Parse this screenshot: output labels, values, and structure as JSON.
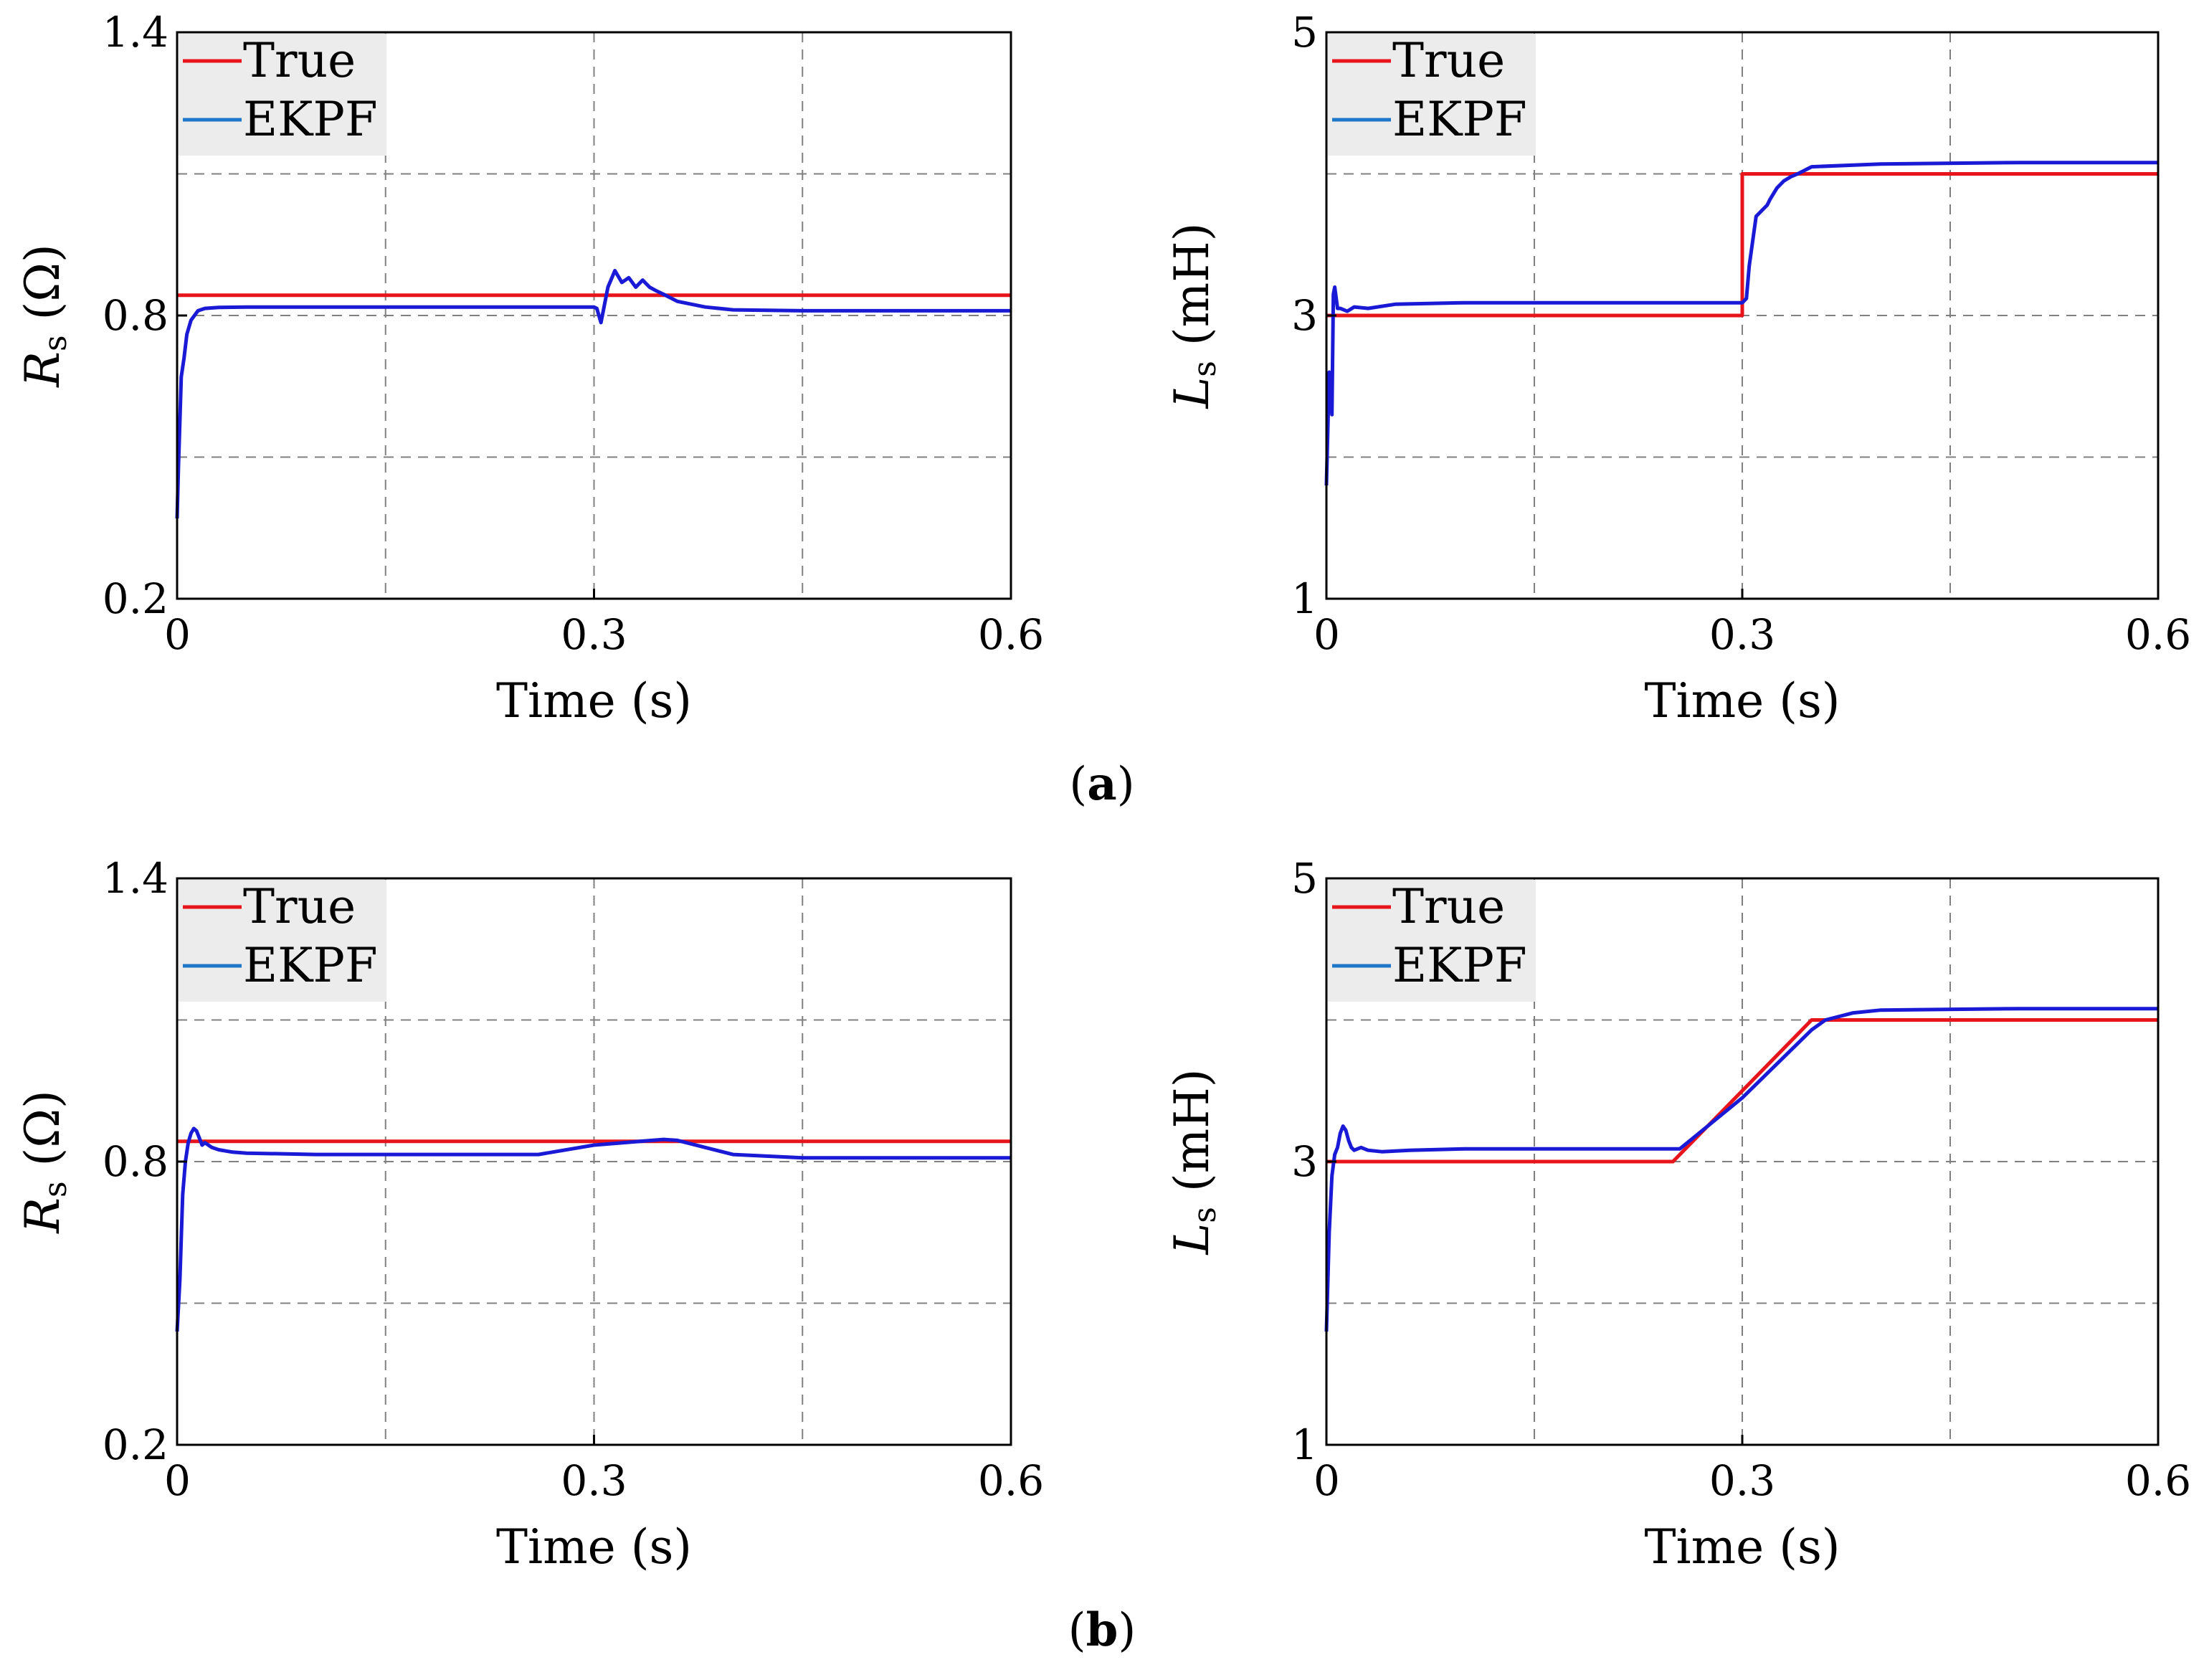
{
  "captions": [
    "(a)",
    "(b)"
  ],
  "colors": {
    "true": "#e8141b",
    "ekpf": "#1a1ad6",
    "legend_ekpf": "#1f77c9",
    "grid": "#808080",
    "legend_bg": "#ececec"
  },
  "chart_data": [
    {
      "type": "line",
      "panel": "a-left",
      "xlabel": "Time (s)",
      "ylabel_main": "R",
      "ylabel_sub": "s",
      "ylabel_unit": "(Ω)",
      "xlim": [
        0,
        0.6
      ],
      "ylim": [
        0.2,
        1.4
      ],
      "xticks": [
        0,
        0.3,
        0.6
      ],
      "xtick_labels": [
        "0",
        "0.3",
        "0.6"
      ],
      "yticks": [
        0.2,
        0.8,
        1.4
      ],
      "ytick_labels": [
        "0.2",
        "0.8",
        "1.4"
      ],
      "xgrid": [
        0.15,
        0.3,
        0.45
      ],
      "ygrid": [
        0.5,
        0.8,
        1.1
      ],
      "legend": [
        "True",
        "EKPF"
      ],
      "series": [
        {
          "name": "True",
          "x": [
            0,
            0.6
          ],
          "y": [
            0.843,
            0.843
          ]
        },
        {
          "name": "EKPF",
          "x": [
            0,
            0.001,
            0.003,
            0.005,
            0.007,
            0.01,
            0.015,
            0.02,
            0.03,
            0.05,
            0.1,
            0.2,
            0.3,
            0.302,
            0.305,
            0.31,
            0.315,
            0.32,
            0.325,
            0.33,
            0.335,
            0.34,
            0.345,
            0.35,
            0.36,
            0.38,
            0.4,
            0.45,
            0.5,
            0.6
          ],
          "y": [
            0.37,
            0.48,
            0.67,
            0.71,
            0.76,
            0.79,
            0.81,
            0.815,
            0.817,
            0.818,
            0.818,
            0.818,
            0.818,
            0.815,
            0.785,
            0.86,
            0.895,
            0.87,
            0.88,
            0.86,
            0.875,
            0.86,
            0.852,
            0.845,
            0.83,
            0.818,
            0.812,
            0.81,
            0.81,
            0.81
          ]
        }
      ]
    },
    {
      "type": "line",
      "panel": "a-right",
      "xlabel": "Time (s)",
      "ylabel_main": "L",
      "ylabel_sub": "s",
      "ylabel_unit": "(mH)",
      "xlim": [
        0,
        0.6
      ],
      "ylim": [
        1,
        5
      ],
      "xticks": [
        0,
        0.3,
        0.6
      ],
      "xtick_labels": [
        "0",
        "0.3",
        "0.6"
      ],
      "yticks": [
        1,
        3,
        5
      ],
      "ytick_labels": [
        "1",
        "3",
        "5"
      ],
      "xgrid": [
        0.15,
        0.3,
        0.45
      ],
      "ygrid": [
        2,
        3,
        4
      ],
      "legend": [
        "True",
        "EKPF"
      ],
      "series": [
        {
          "name": "True",
          "x": [
            0,
            0.3,
            0.3,
            0.6
          ],
          "y": [
            3.0,
            3.0,
            4.0,
            4.0
          ]
        },
        {
          "name": "EKPF",
          "x": [
            0,
            0.002,
            0.004,
            0.005,
            0.006,
            0.008,
            0.01,
            0.015,
            0.02,
            0.03,
            0.05,
            0.1,
            0.2,
            0.3,
            0.303,
            0.305,
            0.31,
            0.315,
            0.318,
            0.32,
            0.325,
            0.33,
            0.335,
            0.34,
            0.35,
            0.4,
            0.5,
            0.6
          ],
          "y": [
            1.8,
            2.6,
            2.3,
            3.15,
            3.2,
            3.05,
            3.05,
            3.03,
            3.06,
            3.05,
            3.08,
            3.09,
            3.09,
            3.09,
            3.12,
            3.35,
            3.7,
            3.75,
            3.78,
            3.82,
            3.9,
            3.95,
            3.98,
            4.0,
            4.05,
            4.07,
            4.08,
            4.08
          ]
        }
      ]
    },
    {
      "type": "line",
      "panel": "b-left",
      "xlabel": "Time (s)",
      "ylabel_main": "R",
      "ylabel_sub": "s",
      "ylabel_unit": "(Ω)",
      "xlim": [
        0,
        0.6
      ],
      "ylim": [
        0.2,
        1.4
      ],
      "xticks": [
        0,
        0.3,
        0.6
      ],
      "xtick_labels": [
        "0",
        "0.3",
        "0.6"
      ],
      "yticks": [
        0.2,
        0.8,
        1.4
      ],
      "ytick_labels": [
        "0.2",
        "0.8",
        "1.4"
      ],
      "xgrid": [
        0.15,
        0.3,
        0.45
      ],
      "ygrid": [
        0.5,
        0.8,
        1.1
      ],
      "legend": [
        "True",
        "EKPF"
      ],
      "series": [
        {
          "name": "True",
          "x": [
            0,
            0.6
          ],
          "y": [
            0.843,
            0.843
          ]
        },
        {
          "name": "EKPF",
          "x": [
            0,
            0.002,
            0.004,
            0.006,
            0.008,
            0.01,
            0.012,
            0.014,
            0.016,
            0.018,
            0.02,
            0.025,
            0.03,
            0.04,
            0.05,
            0.1,
            0.2,
            0.26,
            0.3,
            0.35,
            0.36,
            0.38,
            0.4,
            0.45,
            0.6
          ],
          "y": [
            0.44,
            0.55,
            0.73,
            0.8,
            0.84,
            0.86,
            0.87,
            0.865,
            0.85,
            0.835,
            0.84,
            0.83,
            0.825,
            0.82,
            0.818,
            0.815,
            0.815,
            0.815,
            0.835,
            0.847,
            0.845,
            0.83,
            0.815,
            0.808,
            0.808
          ]
        }
      ]
    },
    {
      "type": "line",
      "panel": "b-right",
      "xlabel": "Time (s)",
      "ylabel_main": "L",
      "ylabel_sub": "s",
      "ylabel_unit": "(mH)",
      "xlim": [
        0,
        0.6
      ],
      "ylim": [
        1,
        5
      ],
      "xticks": [
        0,
        0.3,
        0.6
      ],
      "xtick_labels": [
        "0",
        "0.3",
        "0.6"
      ],
      "yticks": [
        1,
        3,
        5
      ],
      "ytick_labels": [
        "1",
        "3",
        "5"
      ],
      "xgrid": [
        0.15,
        0.3,
        0.45
      ],
      "ygrid": [
        2,
        3,
        4
      ],
      "legend": [
        "True",
        "EKPF"
      ],
      "series": [
        {
          "name": "True",
          "x": [
            0,
            0.25,
            0.35,
            0.6
          ],
          "y": [
            3.0,
            3.0,
            4.0,
            4.0
          ]
        },
        {
          "name": "EKPF",
          "x": [
            0,
            0.002,
            0.004,
            0.006,
            0.008,
            0.01,
            0.012,
            0.014,
            0.016,
            0.018,
            0.02,
            0.025,
            0.03,
            0.04,
            0.06,
            0.1,
            0.2,
            0.255,
            0.3,
            0.35,
            0.36,
            0.38,
            0.4,
            0.5,
            0.6
          ],
          "y": [
            1.8,
            2.5,
            2.9,
            3.05,
            3.1,
            3.2,
            3.25,
            3.22,
            3.15,
            3.1,
            3.08,
            3.1,
            3.08,
            3.07,
            3.08,
            3.09,
            3.09,
            3.09,
            3.45,
            3.93,
            4.0,
            4.05,
            4.07,
            4.08,
            4.08
          ]
        }
      ]
    }
  ]
}
